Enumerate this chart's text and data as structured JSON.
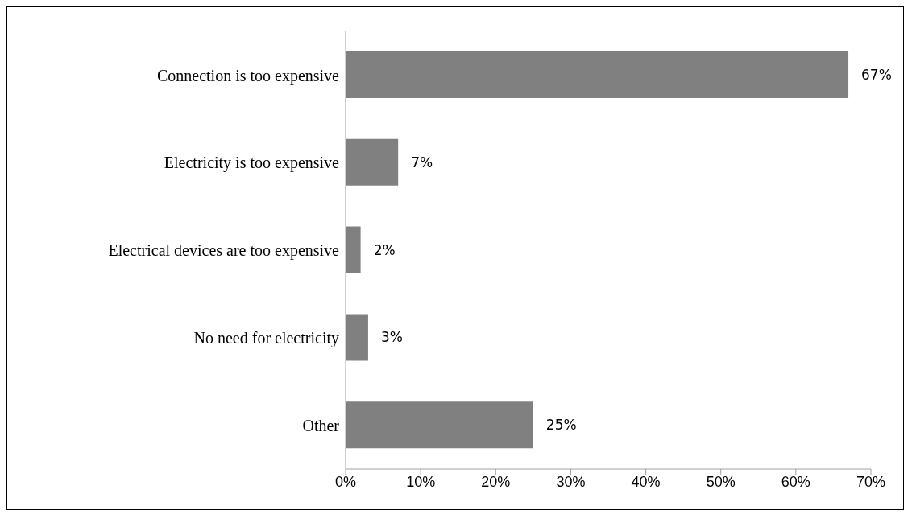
{
  "chart_data": {
    "type": "bar",
    "orientation": "horizontal",
    "categories": [
      "Connection is too expensive",
      "Electricity is too expensive",
      "Electrical devices are too expensive",
      "No need for electricity",
      "Other"
    ],
    "values": [
      67,
      7,
      2,
      3,
      25
    ],
    "value_labels": [
      "67%",
      "7%",
      "2%",
      "3%",
      "25%"
    ],
    "color": "#808080",
    "xlim": [
      0,
      70
    ],
    "xticks": [
      {
        "value": 0,
        "label": "0%"
      },
      {
        "value": 10,
        "label": "10%"
      },
      {
        "value": 20,
        "label": "20%"
      },
      {
        "value": 30,
        "label": "30%"
      },
      {
        "value": 40,
        "label": "40%"
      },
      {
        "value": 50,
        "label": "50%"
      },
      {
        "value": 60,
        "label": "60%"
      },
      {
        "value": 70,
        "label": "70%"
      }
    ],
    "grid": false,
    "legend": false
  }
}
